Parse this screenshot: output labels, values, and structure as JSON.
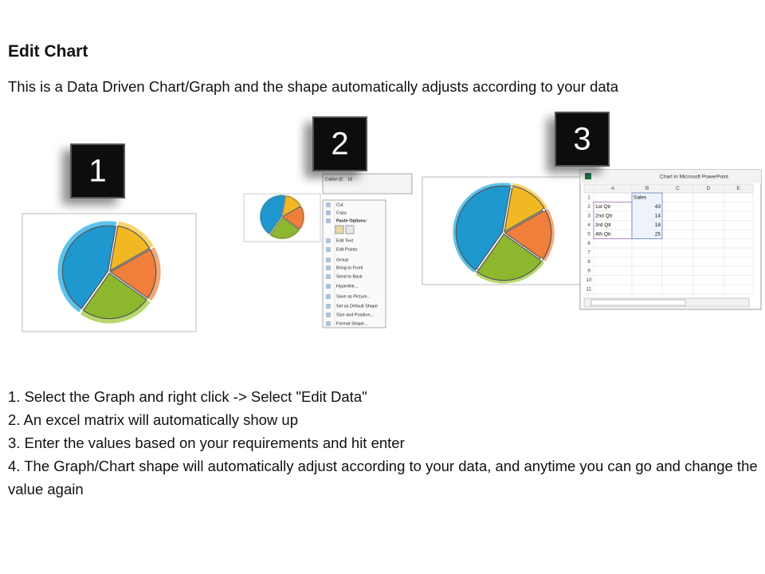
{
  "header": {
    "title": "Edit Chart",
    "subtitle": "This is a Data Driven Chart/Graph and the shape automatically adjusts according to your data"
  },
  "steps": [
    {
      "label": "1"
    },
    {
      "label": "2"
    },
    {
      "label": "3"
    }
  ],
  "context_menu": {
    "font_name": "Calibri (E",
    "font_size": "18",
    "items": [
      "Cut",
      "Copy",
      "Paste Options:",
      "Edit Text",
      "Edit Points",
      "Group",
      "Bring to Front",
      "Send to Back",
      "Hyperlink...",
      "Save as Picture...",
      "Set as Default Shape",
      "Size and Position...",
      "Format Shape..."
    ]
  },
  "spreadsheet": {
    "window_title": "Chart in Microsoft PowerPoint",
    "columns": [
      "A",
      "B",
      "C",
      "D",
      "E"
    ],
    "row_numbers": [
      "1",
      "2",
      "3",
      "4",
      "5",
      "6",
      "7",
      "8",
      "9",
      "10",
      "11"
    ],
    "value_header": "Sales",
    "rows": [
      [
        "1st Qtr",
        43
      ],
      [
        "2nd Qtr",
        14
      ],
      [
        "3rd Qtr",
        18
      ],
      [
        "4th Qtr",
        25
      ]
    ]
  },
  "instructions": [
    "1. Select the Graph and right click -> Select \"Edit Data\"",
    "2. An excel matrix will automatically show up",
    "3. Enter the values based on your requirements and hit enter",
    "4. The Graph/Chart shape will automatically adjust according to your data, and anytime you can go and change the value again"
  ]
}
